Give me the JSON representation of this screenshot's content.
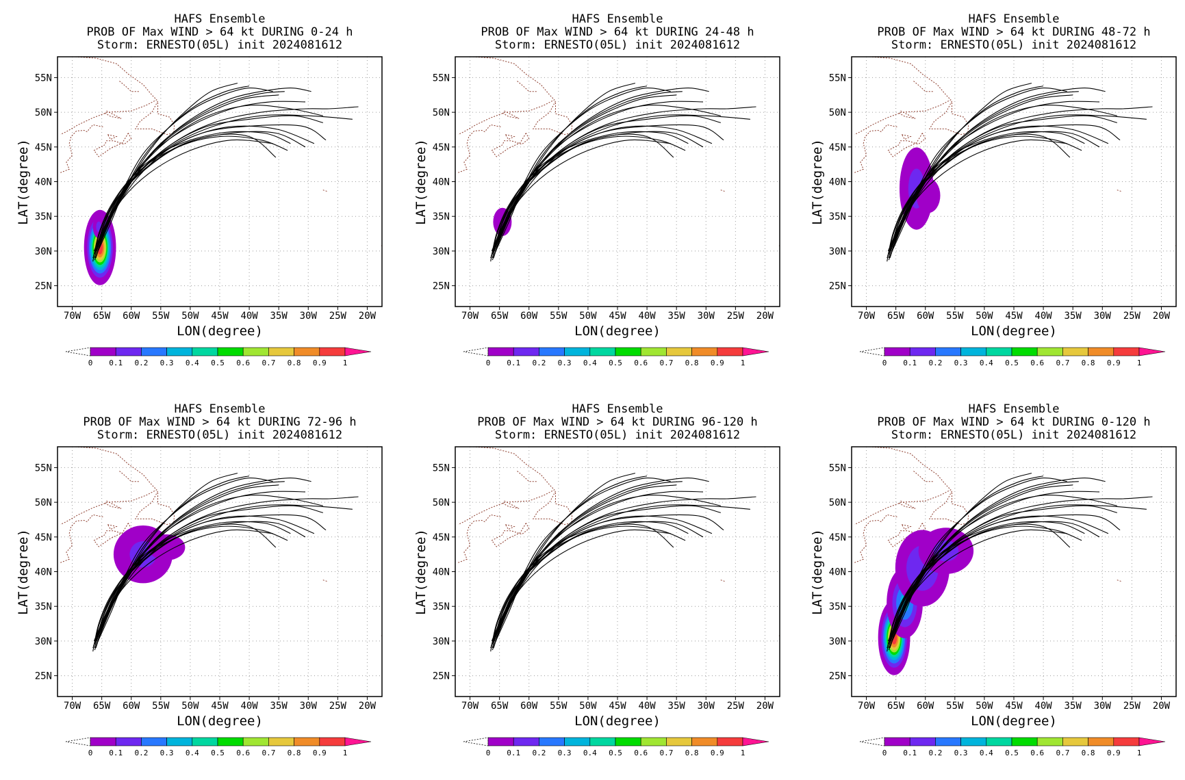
{
  "figure": {
    "shared_title_line1": "HAFS Ensemble",
    "shared_title_line3": "Storm: ERNESTO(05L) init 2024081612",
    "xlabel": "LON(degree)",
    "ylabel": "LAT(degree)",
    "x_ticks": [
      "70W",
      "65W",
      "60W",
      "55W",
      "50W",
      "45W",
      "40W",
      "35W",
      "30W",
      "25W",
      "20W"
    ],
    "y_ticks": [
      "25N",
      "30N",
      "35N",
      "40N",
      "45N",
      "50N",
      "55N"
    ],
    "colorbar": {
      "levels": [
        "0",
        "0.1",
        "0.2",
        "0.3",
        "0.4",
        "0.5",
        "0.6",
        "0.7",
        "0.8",
        "0.9",
        "1"
      ],
      "colors": [
        "#a000c8",
        "#6e28f0",
        "#2878ff",
        "#00b4dc",
        "#00d7a0",
        "#00dc00",
        "#a0e632",
        "#e6c83c",
        "#f08c28",
        "#f53c3c",
        "#ff1493"
      ]
    },
    "track_color": "#000000",
    "coast_color": "#8b3a2a",
    "grid": true,
    "grid_style": "dotted"
  },
  "chart_data": [
    {
      "type": "heatmap",
      "title": "PROB OF Max WIND > 64 kt DURING  0-24 h",
      "xlim": [
        -72.5,
        -17.5
      ],
      "ylim": [
        22.0,
        58.0
      ],
      "prob_blobs": [
        {
          "lon": -65.3,
          "lat": 30.5,
          "sx": 1.1,
          "sy": 2.2,
          "peak": 1.0
        },
        {
          "lon": -65.5,
          "lat": 33.5,
          "sx": 0.6,
          "sy": 1.0,
          "peak": 0.15
        }
      ]
    },
    {
      "type": "heatmap",
      "title": "PROB OF Max WIND > 64 kt DURING 24-48 h",
      "xlim": [
        -72.5,
        -17.5
      ],
      "ylim": [
        22.0,
        58.0
      ],
      "prob_blobs": [
        {
          "lon": -64.5,
          "lat": 34.2,
          "sx": 1.0,
          "sy": 1.3,
          "peak": 0.12
        }
      ]
    },
    {
      "type": "heatmap",
      "title": "PROB OF Max WIND > 64 kt DURING 48-72 h",
      "xlim": [
        -72.5,
        -17.5
      ],
      "ylim": [
        22.0,
        58.0
      ],
      "prob_blobs": [
        {
          "lon": -61.5,
          "lat": 39.0,
          "sx": 1.7,
          "sy": 3.5,
          "peak": 0.16
        },
        {
          "lon": -59.5,
          "lat": 38.0,
          "sx": 1.3,
          "sy": 1.6,
          "peak": 0.12
        }
      ]
    },
    {
      "type": "heatmap",
      "title": "PROB OF Max WIND > 64 kt DURING 72-96 h",
      "xlim": [
        -72.5,
        -17.5
      ],
      "ylim": [
        22.0,
        58.0
      ],
      "prob_blobs": [
        {
          "lon": -58.0,
          "lat": 42.5,
          "sx": 3.0,
          "sy": 2.5,
          "peak": 0.15
        },
        {
          "lon": -54.0,
          "lat": 43.5,
          "sx": 2.0,
          "sy": 1.2,
          "peak": 0.12
        }
      ]
    },
    {
      "type": "heatmap",
      "title": "PROB OF Max WIND > 64 kt DURING 96-120 h",
      "xlim": [
        -72.5,
        -17.5
      ],
      "ylim": [
        22.0,
        58.0
      ],
      "prob_blobs": []
    },
    {
      "type": "heatmap",
      "title": "PROB OF Max WIND > 64 kt DURING 0-120 h",
      "xlim": [
        -72.5,
        -17.5
      ],
      "ylim": [
        22.0,
        58.0
      ],
      "prob_blobs": [
        {
          "lon": -65.3,
          "lat": 30.5,
          "sx": 1.1,
          "sy": 2.2,
          "peak": 1.0
        },
        {
          "lon": -63.5,
          "lat": 35.5,
          "sx": 1.5,
          "sy": 2.5,
          "peak": 0.35
        },
        {
          "lon": -60.5,
          "lat": 40.5,
          "sx": 2.5,
          "sy": 3.0,
          "peak": 0.22
        },
        {
          "lon": -56.5,
          "lat": 43.0,
          "sx": 2.8,
          "sy": 2.0,
          "peak": 0.15
        }
      ]
    }
  ],
  "tracks": [
    [
      [
        -66.3,
        29.5
      ],
      [
        -65.2,
        33.0
      ],
      [
        -63.0,
        37.0
      ],
      [
        -59.0,
        41.5
      ],
      [
        -53.0,
        45.0
      ],
      [
        -45.0,
        47.0
      ],
      [
        -37.5,
        47.0
      ],
      [
        -33.0,
        45.5
      ]
    ],
    [
      [
        -66.5,
        28.5
      ],
      [
        -65.5,
        32.5
      ],
      [
        -63.5,
        36.5
      ],
      [
        -60.0,
        40.5
      ],
      [
        -54.5,
        44.0
      ],
      [
        -47.0,
        46.5
      ],
      [
        -40.0,
        46.5
      ],
      [
        -35.5,
        43.5
      ]
    ],
    [
      [
        -66.0,
        30.0
      ],
      [
        -64.5,
        34.0
      ],
      [
        -62.0,
        38.0
      ],
      [
        -57.5,
        42.0
      ],
      [
        -51.0,
        45.5
      ],
      [
        -43.0,
        47.0
      ],
      [
        -35.5,
        47.0
      ],
      [
        -30.5,
        45.0
      ]
    ],
    [
      [
        -66.2,
        29.0
      ],
      [
        -64.8,
        33.5
      ],
      [
        -62.5,
        37.5
      ],
      [
        -58.0,
        41.5
      ],
      [
        -52.0,
        45.0
      ],
      [
        -45.0,
        46.5
      ],
      [
        -38.0,
        46.0
      ],
      [
        -33.5,
        44.5
      ]
    ],
    [
      [
        -66.3,
        30.0
      ],
      [
        -64.0,
        34.5
      ],
      [
        -60.5,
        39.5
      ],
      [
        -55.0,
        44.0
      ],
      [
        -48.0,
        47.0
      ],
      [
        -40.0,
        48.0
      ],
      [
        -31.0,
        48.0
      ],
      [
        -27.0,
        46.0
      ]
    ],
    [
      [
        -66.5,
        29.0
      ],
      [
        -64.5,
        33.0
      ],
      [
        -61.5,
        37.5
      ],
      [
        -56.5,
        41.5
      ],
      [
        -50.0,
        44.5
      ],
      [
        -43.0,
        46.0
      ],
      [
        -36.0,
        45.5
      ]
    ],
    [
      [
        -66.0,
        30.5
      ],
      [
        -63.5,
        35.0
      ],
      [
        -59.5,
        40.5
      ],
      [
        -53.5,
        45.0
      ],
      [
        -46.0,
        48.0
      ],
      [
        -38.0,
        49.5
      ],
      [
        -30.0,
        49.5
      ],
      [
        -22.5,
        49.0
      ]
    ],
    [
      [
        -65.8,
        31.0
      ],
      [
        -63.0,
        36.0
      ],
      [
        -59.0,
        41.0
      ],
      [
        -53.0,
        45.5
      ],
      [
        -46.0,
        48.5
      ],
      [
        -38.0,
        50.0
      ],
      [
        -30.5,
        50.5
      ],
      [
        -26.5,
        50.5
      ],
      [
        -21.5,
        50.8
      ]
    ],
    [
      [
        -66.0,
        30.0
      ],
      [
        -63.5,
        35.5
      ],
      [
        -60.5,
        40.0
      ],
      [
        -56.0,
        44.5
      ],
      [
        -50.0,
        48.0
      ],
      [
        -43.0,
        50.5
      ],
      [
        -36.5,
        51.5
      ],
      [
        -30.5,
        51.5
      ]
    ],
    [
      [
        -65.8,
        30.5
      ],
      [
        -63.0,
        36.0
      ],
      [
        -59.5,
        41.0
      ],
      [
        -55.0,
        45.5
      ],
      [
        -49.5,
        49.0
      ],
      [
        -43.5,
        51.5
      ],
      [
        -38.0,
        52.7
      ],
      [
        -34.0,
        53.0
      ]
    ],
    [
      [
        -65.5,
        30.5
      ],
      [
        -63.0,
        35.5
      ],
      [
        -60.0,
        40.0
      ],
      [
        -56.0,
        44.5
      ],
      [
        -51.0,
        48.0
      ],
      [
        -45.5,
        50.5
      ],
      [
        -40.5,
        52.0
      ],
      [
        -35.0,
        52.5
      ]
    ],
    [
      [
        -65.7,
        30.0
      ],
      [
        -63.5,
        34.5
      ],
      [
        -61.0,
        39.0
      ],
      [
        -58.0,
        43.5
      ],
      [
        -54.0,
        47.5
      ],
      [
        -49.0,
        51.0
      ],
      [
        -44.0,
        53.0
      ],
      [
        -40.0,
        53.8
      ]
    ],
    [
      [
        -65.9,
        29.5
      ],
      [
        -63.5,
        34.0
      ],
      [
        -61.5,
        38.0
      ],
      [
        -58.5,
        42.5
      ],
      [
        -55.0,
        46.5
      ],
      [
        -51.0,
        50.0
      ],
      [
        -46.5,
        53.0
      ],
      [
        -42.0,
        54.2
      ]
    ],
    [
      [
        -66.1,
        29.5
      ],
      [
        -63.8,
        34.5
      ],
      [
        -61.0,
        39.5
      ],
      [
        -58.0,
        44.0
      ],
      [
        -54.0,
        47.5
      ],
      [
        -49.5,
        50.5
      ],
      [
        -44.5,
        52.5
      ],
      [
        -40.0,
        53.5
      ],
      [
        -36.0,
        53.0
      ]
    ],
    [
      [
        -66.0,
        29.0
      ],
      [
        -64.0,
        34.0
      ],
      [
        -61.0,
        38.5
      ],
      [
        -57.5,
        43.0
      ],
      [
        -53.0,
        47.0
      ],
      [
        -48.0,
        50.0
      ],
      [
        -43.0,
        52.0
      ],
      [
        -38.0,
        53.0
      ],
      [
        -33.0,
        53.5
      ],
      [
        -29.5,
        53.0
      ]
    ],
    [
      [
        -66.2,
        28.7
      ],
      [
        -64.2,
        33.5
      ],
      [
        -61.5,
        38.5
      ],
      [
        -58.0,
        42.5
      ],
      [
        -53.0,
        46.5
      ],
      [
        -47.0,
        49.5
      ],
      [
        -40.0,
        51.0
      ],
      [
        -33.0,
        50.5
      ],
      [
        -27.5,
        49.5
      ]
    ],
    [
      [
        -66.4,
        29.3
      ],
      [
        -64.5,
        33.5
      ],
      [
        -62.0,
        38.0
      ],
      [
        -58.0,
        42.0
      ],
      [
        -53.0,
        45.5
      ],
      [
        -47.0,
        48.0
      ],
      [
        -40.0,
        49.0
      ],
      [
        -32.5,
        49.5
      ],
      [
        -27.5,
        48.5
      ]
    ],
    [
      [
        -65.6,
        30.8
      ],
      [
        -63.0,
        35.5
      ],
      [
        -59.0,
        40.5
      ],
      [
        -54.0,
        44.5
      ],
      [
        -48.0,
        47.0
      ],
      [
        -42.0,
        48.0
      ],
      [
        -35.0,
        47.5
      ],
      [
        -29.0,
        45.5
      ]
    ]
  ],
  "coastlines": [
    [
      [
        -69.5,
        58.0
      ],
      [
        -66.0,
        57.8
      ],
      [
        -62.5,
        57.0
      ],
      [
        -60.5,
        55.5
      ],
      [
        -58.0,
        54.0
      ],
      [
        -56.5,
        52.5
      ],
      [
        -55.7,
        51.8
      ],
      [
        -57.5,
        51.0
      ],
      [
        -60.0,
        50.2
      ],
      [
        -64.0,
        50.0
      ],
      [
        -66.5,
        49.2
      ],
      [
        -69.0,
        48.2
      ],
      [
        -71.0,
        47.2
      ],
      [
        -72.0,
        46.8
      ]
    ],
    [
      [
        -55.5,
        51.6
      ],
      [
        -56.5,
        50.0
      ],
      [
        -58.5,
        48.7
      ],
      [
        -59.3,
        47.6
      ],
      [
        -56.5,
        47.6
      ],
      [
        -54.0,
        46.8
      ],
      [
        -52.8,
        47.0
      ],
      [
        -52.7,
        48.2
      ],
      [
        -53.5,
        49.3
      ],
      [
        -55.5,
        49.8
      ],
      [
        -55.5,
        51.6
      ]
    ],
    [
      [
        -60.5,
        47.0
      ],
      [
        -61.5,
        45.6
      ],
      [
        -63.5,
        44.8
      ],
      [
        -65.5,
        43.6
      ],
      [
        -66.3,
        44.5
      ],
      [
        -64.5,
        45.3
      ],
      [
        -64.2,
        45.9
      ],
      [
        -63.0,
        45.9
      ],
      [
        -61.2,
        45.4
      ],
      [
        -60.0,
        46.2
      ],
      [
        -60.5,
        47.0
      ]
    ],
    [
      [
        -64.8,
        47.9
      ],
      [
        -66.5,
        48.2
      ],
      [
        -67.5,
        47.2
      ],
      [
        -68.0,
        47.4
      ],
      [
        -69.3,
        47.3
      ],
      [
        -70.2,
        46.5
      ],
      [
        -70.5,
        45.5
      ],
      [
        -70.0,
        43.8
      ],
      [
        -71.0,
        42.8
      ],
      [
        -70.5,
        41.8
      ],
      [
        -72.0,
        41.3
      ]
    ],
    [
      [
        -64.2,
        50.2
      ],
      [
        -61.7,
        49.1
      ],
      [
        -63.5,
        49.4
      ],
      [
        -64.5,
        49.9
      ]
    ],
    [
      [
        -64.0,
        46.8
      ],
      [
        -62.5,
        46.5
      ],
      [
        -63.5,
        46.1
      ],
      [
        -64.0,
        46.8
      ]
    ],
    [
      [
        -62.0,
        54.5
      ],
      [
        -61.0,
        53.8
      ],
      [
        -60.0,
        53.0
      ],
      [
        -58.5,
        53.0
      ]
    ],
    [
      [
        -27.5,
        38.8
      ],
      [
        -26.8,
        38.6
      ]
    ],
    [
      [
        -17.6,
        30.8
      ],
      [
        -17.2,
        30.5
      ]
    ]
  ]
}
